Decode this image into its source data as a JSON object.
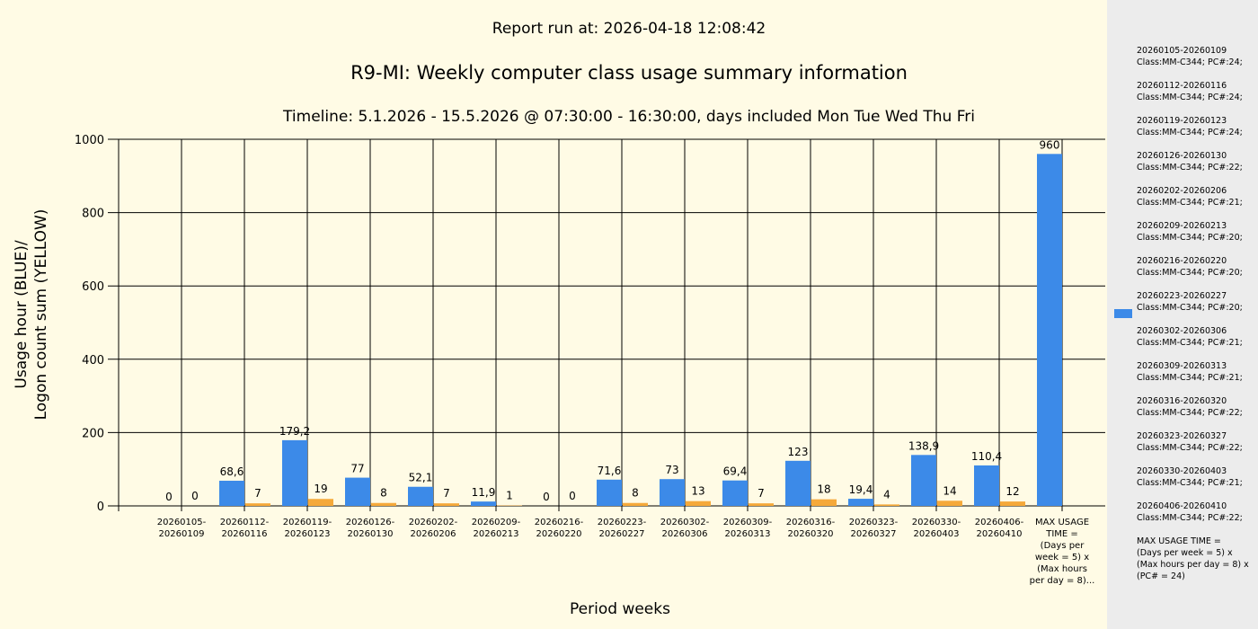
{
  "report_run": "Report run at: 2026-04-18 12:08:42",
  "chart_data": {
    "type": "bar",
    "title": "R9-MI: Weekly computer class usage summary information",
    "subtitle": "Timeline:  5.1.2026  - 15.5.2026  @  07:30:00 -  16:30:00, days included Mon Tue Wed Thu Fri",
    "ylabel": "Usage hour (BLUE)/\nLogon count sum (YELLOW)",
    "xlabel": "Period weeks",
    "ylim": [
      0,
      1000
    ],
    "yticks": [
      0,
      200,
      400,
      600,
      800,
      1000
    ],
    "grid": true,
    "legend_position": "right",
    "colors": {
      "usage": "#3c8ae8",
      "logon": "#f5a93a",
      "background": "#fffbe5",
      "legend_background": "#ececec"
    },
    "categories": [
      [
        "20260105-",
        "20260109"
      ],
      [
        "20260112-",
        "20260116"
      ],
      [
        "20260119-",
        "20260123"
      ],
      [
        "20260126-",
        "20260130"
      ],
      [
        "20260202-",
        "20260206"
      ],
      [
        "20260209-",
        "20260213"
      ],
      [
        "20260216-",
        "20260220"
      ],
      [
        "20260223-",
        "20260227"
      ],
      [
        "20260302-",
        "20260306"
      ],
      [
        "20260309-",
        "20260313"
      ],
      [
        "20260316-",
        "20260320"
      ],
      [
        "20260323-",
        "20260327"
      ],
      [
        "20260330-",
        "20260403"
      ],
      [
        "20260406-",
        "20260410"
      ],
      [
        "MAX USAGE",
        "TIME =",
        "(Days per",
        "week = 5) x",
        "(Max hours",
        "per day = 8)..."
      ]
    ],
    "series": [
      {
        "key": "usage",
        "values": [
          0,
          68.6,
          179.2,
          77,
          52.1,
          11.9,
          0,
          71.6,
          73,
          69.4,
          123,
          19.4,
          138.9,
          110.4,
          960
        ],
        "labels": [
          "0",
          "68,6",
          "179,2",
          "77",
          "52,1",
          "11,9",
          "0",
          "71,6",
          "73",
          "69,4",
          "123",
          "19,4",
          "138,9",
          "110,4",
          "960"
        ]
      },
      {
        "key": "logon",
        "values": [
          0,
          7,
          19,
          8,
          7,
          1,
          0,
          8,
          13,
          7,
          18,
          4,
          14,
          12,
          null
        ],
        "labels": [
          "0",
          "7",
          "19",
          "8",
          "7",
          "1",
          "0",
          "8",
          "13",
          "7",
          "18",
          "4",
          "14",
          "12",
          ""
        ]
      }
    ],
    "legend_entries": [
      "20260105-20260109\nClass:MM-C344; PC#:24;",
      "20260112-20260116\nClass:MM-C344; PC#:24;",
      "20260119-20260123\nClass:MM-C344; PC#:24;",
      "20260126-20260130\nClass:MM-C344; PC#:22;",
      "20260202-20260206\nClass:MM-C344; PC#:21;",
      "20260209-20260213\nClass:MM-C344; PC#:20;",
      "20260216-20260220\nClass:MM-C344; PC#:20;",
      "20260223-20260227\nClass:MM-C344; PC#:20;",
      "20260302-20260306\nClass:MM-C344; PC#:21;",
      "20260309-20260313\nClass:MM-C344; PC#:21;",
      "20260316-20260320\nClass:MM-C344; PC#:22;",
      "20260323-20260327\nClass:MM-C344; PC#:22;",
      "20260330-20260403\nClass:MM-C344; PC#:21;",
      "20260406-20260410\nClass:MM-C344; PC#:22;",
      "MAX USAGE TIME =\n(Days per week = 5) x (Max hours per day = 8) x (PC# = 24)"
    ]
  }
}
